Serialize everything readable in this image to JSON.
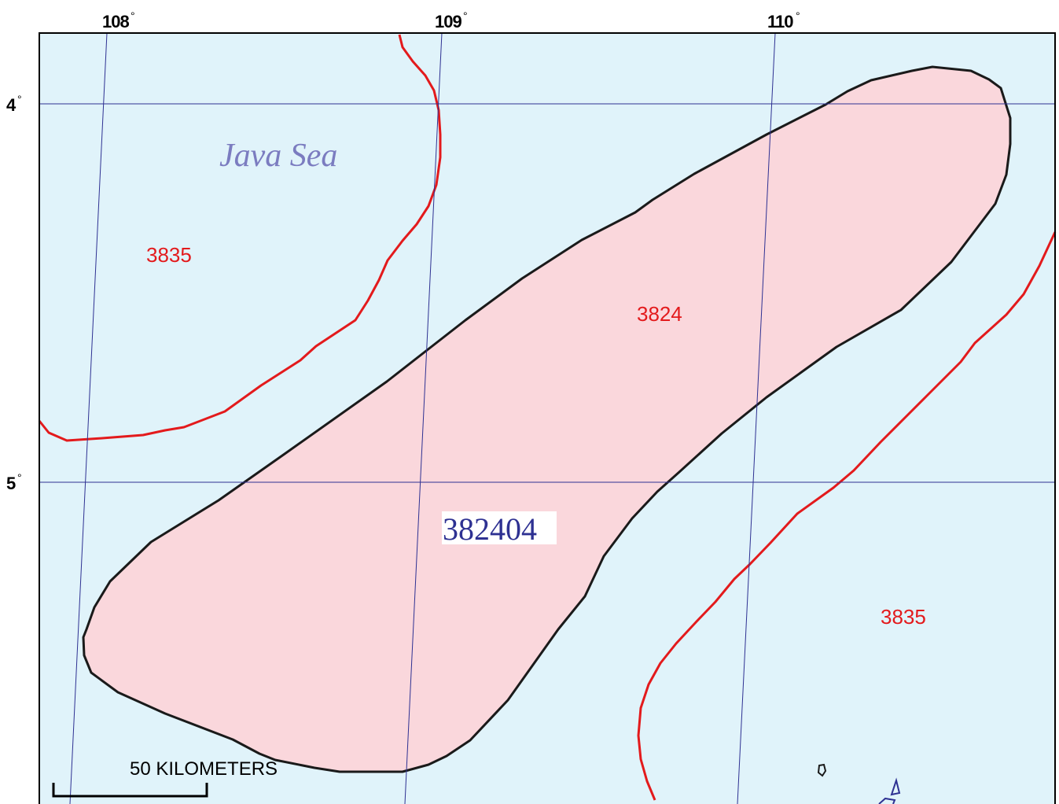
{
  "map": {
    "colors": {
      "sea": "#e0f3fa",
      "assessment_unit_fill": "#fad7dc",
      "assessment_unit_border": "#1a1a1a",
      "province_boundary": "#e31a1c",
      "graticule": "#2e3192",
      "frame": "#000000"
    },
    "longitude_labels": [
      "108",
      "109",
      "110"
    ],
    "latitude_labels": [
      "4",
      "5"
    ],
    "degree_symbol": "°",
    "sea_name": "Java Sea",
    "province_labels": [
      "3835",
      "3824",
      "3835"
    ],
    "assessment_unit_id": "382404",
    "scale_bar": {
      "label": "50 KILOMETERS"
    }
  }
}
